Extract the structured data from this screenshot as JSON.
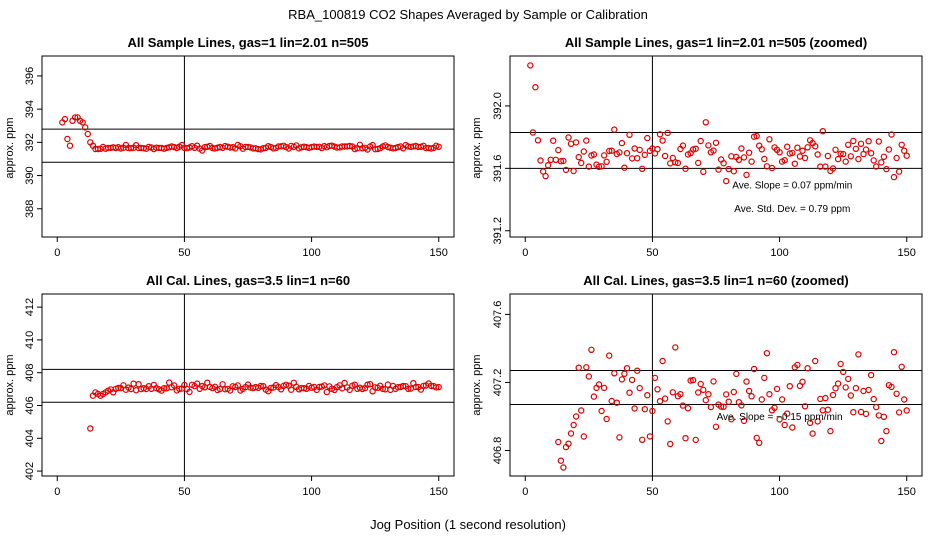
{
  "figure": {
    "title": "RBA_100819  CO2 Shapes Averaged by Sample or Calibration",
    "xlabel": "Jog Position (1 second resolution)"
  },
  "chart_data": [
    {
      "type": "scatter",
      "title": "All Sample Lines, gas=1 lin=2.01 n=505",
      "ylabel": "approx. ppm",
      "xlim": [
        -6,
        156
      ],
      "ylim": [
        386.3,
        397.2
      ],
      "x_ticks": [
        0,
        50,
        100,
        150
      ],
      "y_ticks": [
        388,
        390,
        392,
        394,
        396
      ],
      "vline": 50,
      "hlines": [
        390.8,
        392.8
      ],
      "annotations": [],
      "series": [
        {
          "x": [],
          "y": []
        }
      ],
      "model": {
        "level": 391.7,
        "amp": 0.07,
        "seed": 11,
        "lead": [
          393.2,
          393.4,
          392.2,
          391.8,
          393.3,
          393.5,
          393.5,
          393.3,
          393.2,
          392.9,
          392.5,
          392.0,
          391.8,
          391.6,
          391.6
        ]
      }
    },
    {
      "type": "scatter",
      "title": "All Sample Lines, gas=1 lin=2.01 n=505 (zoomed)",
      "ylabel": "approx. ppm",
      "xlim": [
        -6,
        156
      ],
      "ylim": [
        391.16,
        392.32
      ],
      "x_ticks": [
        0,
        50,
        100,
        150
      ],
      "y_ticks": [
        391.2,
        391.6,
        392.0
      ],
      "vline": 50,
      "hlines": [
        391.6,
        391.83
      ],
      "annotations": [
        {
          "text": "Ave. Slope =  0.07  ppm/min",
          "x": 105,
          "y": 391.47
        },
        {
          "text": "Ave. Std. Dev. =  0.79  ppm",
          "x": 105,
          "y": 391.32
        }
      ],
      "series": [
        {
          "x": [],
          "y": []
        }
      ],
      "model": {
        "level": 391.7,
        "amp": 0.07,
        "seed": 23,
        "lead": [
          392.26,
          391.83,
          392.12,
          391.78,
          391.65,
          391.58,
          391.55,
          391.62
        ]
      }
    },
    {
      "type": "scatter",
      "title": "All Cal. Lines, gas=3.5 lin=1 n=60",
      "ylabel": "approx. ppm",
      "xlim": [
        -6,
        156
      ],
      "ylim": [
        401.7,
        412.8
      ],
      "x_ticks": [
        0,
        50,
        100,
        150
      ],
      "y_ticks": [
        402,
        404,
        406,
        408,
        410,
        412
      ],
      "vline": 50,
      "hlines": [
        406.2,
        408.2
      ],
      "annotations": [],
      "series": [
        {
          "x": [],
          "y": []
        }
      ],
      "model": {
        "level": 407.1,
        "amp": 0.13,
        "seed": 37,
        "lead": [
          404.6,
          406.6,
          406.8,
          406.7,
          406.6,
          406.7,
          406.8,
          406.9
        ]
      }
    },
    {
      "type": "scatter",
      "title": "All Cal. Lines, gas=3.5 lin=1 n=60 (zoomed)",
      "ylabel": "approx. ppm",
      "xlim": [
        -6,
        156
      ],
      "ylim": [
        406.65,
        407.72
      ],
      "x_ticks": [
        0,
        50,
        100,
        150
      ],
      "y_ticks": [
        406.8,
        407.2,
        407.6
      ],
      "vline": 50,
      "hlines": [
        407.07,
        407.27
      ],
      "annotations": [
        {
          "text": "Ave. Slope =  −0.15  ppm/min",
          "x": 100,
          "y": 406.98
        }
      ],
      "series": [
        {
          "x": [],
          "y": []
        }
      ],
      "model": {
        "level": 407.12,
        "amp": 0.13,
        "seed": 41,
        "lead": [
          406.85,
          406.74,
          406.7,
          406.82,
          406.84,
          406.9,
          406.95,
          407.0
        ]
      }
    }
  ]
}
